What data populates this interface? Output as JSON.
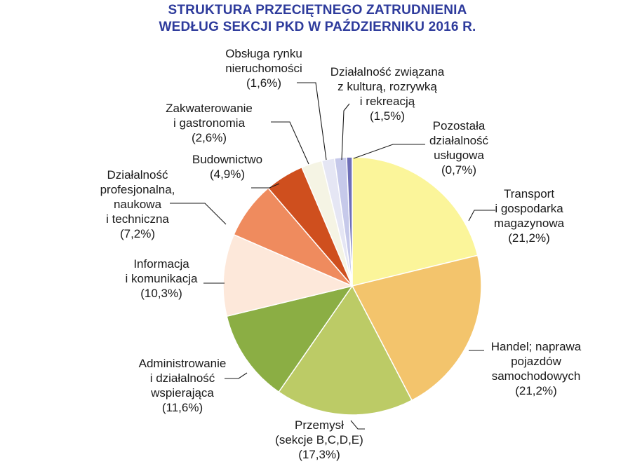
{
  "title_line1": "STRUKTURA PRZECIĘTNEGO ZATRUDNIENIA",
  "title_line2": "WEDŁUG SEKCJI PKD W PAŹDZIERNIKU 2016 R.",
  "colors": {
    "title": "#2e3b9c",
    "edge": "#ffffff",
    "leader": "#1a1a1a"
  },
  "chart_data": {
    "type": "pie",
    "title": "STRUKTURA PRZECIĘTNEGO ZATRUDNIENIA WEDŁUG SEKCJI PKD W PAŹDZIERNIKU 2016 R.",
    "unit": "%",
    "start": "12 o'clock",
    "direction": "clockwise",
    "slices": [
      {
        "label": "Transport i gospodarka magazynowa",
        "lines": [
          "Transport",
          "i gospodarka",
          "magazynowa",
          "(21,2%)"
        ],
        "value": 21.2,
        "color": "#fbf59a"
      },
      {
        "label": "Handel; naprawa pojazdów samochodowych",
        "lines": [
          "Handel; naprawa",
          "pojazdów",
          "samochodowych",
          "(21,2%)"
        ],
        "value": 21.2,
        "color": "#f3c46c"
      },
      {
        "label": "Przemysł (sekcje B,C,D,E)",
        "lines": [
          "Przemysł",
          "(sekcje B,C,D,E)",
          "(17,3%)"
        ],
        "value": 17.3,
        "color": "#bccb66"
      },
      {
        "label": "Administrowanie i działalność wspierająca",
        "lines": [
          "Administrowanie",
          "i działalność",
          "wspierająca",
          "(11,6%)"
        ],
        "value": 11.6,
        "color": "#8bae44"
      },
      {
        "label": "Informacja i komunikacja",
        "lines": [
          "Informacja",
          "i komunikacja",
          "(10,3%)"
        ],
        "value": 10.3,
        "color": "#fde8da"
      },
      {
        "label": "Działalność profesjonalna, naukowa i techniczna",
        "lines": [
          "Działalność",
          "profesjonalna,",
          "naukowa",
          "i techniczna",
          "(7,2%)"
        ],
        "value": 7.2,
        "color": "#ef8b5e"
      },
      {
        "label": "Budownictwo",
        "lines": [
          "Budownictwo",
          "(4,9%)"
        ],
        "value": 4.9,
        "color": "#cf4f1e"
      },
      {
        "label": "Zakwaterowanie i gastronomia",
        "lines": [
          "Zakwaterowanie",
          "i gastronomia",
          "(2,6%)"
        ],
        "value": 2.6,
        "color": "#f5f4e4"
      },
      {
        "label": "Obsługa rynku nieruchomości",
        "lines": [
          "Obsługa rynku",
          "nieruchomości",
          "(1,6%)"
        ],
        "value": 1.6,
        "color": "#e5e6f4"
      },
      {
        "label": "Działalność związana z kulturą, rozrywką i rekreacją",
        "lines": [
          "Działalność związana",
          "z kulturą, rozrywką",
          "i rekreacją",
          "(1,5%)"
        ],
        "value": 1.5,
        "color": "#c6c9ea"
      },
      {
        "label": "Pozostała działalność usługowa",
        "lines": [
          "Pozostała",
          "działalność",
          "usługowa",
          "(0,7%)"
        ],
        "value": 0.7,
        "color": "#6f6fb8"
      }
    ]
  }
}
